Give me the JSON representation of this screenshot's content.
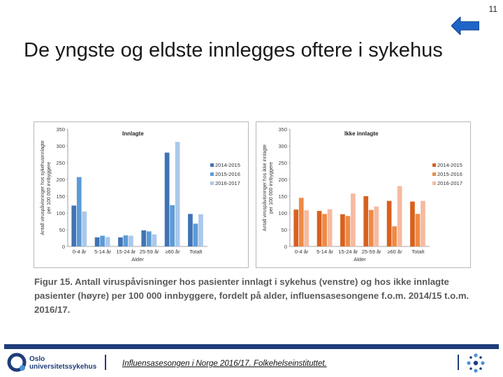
{
  "page_number": "11",
  "title": "De yngste og eldste innlegges oftere i sykehus",
  "caption": "Figur 15. Antall viruspåvisninger hos pasienter innlagt i sykehus (venstre) og hos ikke innlagte pasienter (høyre) per 100 000 innbyggere, fordelt på alder, influensasesongene f.o.m. 2014/15 t.o.m. 2016/17.",
  "footer": {
    "logo_line1": "Oslo",
    "logo_line2": "universitetssykehus",
    "link": "Influensasesongen i Norge 2016/17. Folkehelseinstituttet."
  },
  "colors": {
    "footer_bar": "#1f3d7a",
    "back_arrow": "#1f64c8"
  },
  "chart_data": [
    {
      "type": "bar",
      "title": "Innlagte",
      "xlabel": "Alder",
      "ylabel": "Antall viruspåvisninger hos sykehusinnlagte per 100 000 innbyggere",
      "categories": [
        "0-4 år",
        "5-14 år",
        "15-24 år",
        "25-59 år",
        "≥60 år",
        "Totalt"
      ],
      "ylim": [
        0,
        350
      ],
      "yticks": [
        0,
        50,
        100,
        150,
        200,
        250,
        300,
        350
      ],
      "legend_position": "right",
      "series": [
        {
          "name": "2014-2015",
          "color": "#3f73b5",
          "values": [
            122,
            27,
            27,
            48,
            280,
            97
          ]
        },
        {
          "name": "2015-2016",
          "color": "#5b9bd5",
          "values": [
            207,
            32,
            33,
            45,
            123,
            68
          ]
        },
        {
          "name": "2016-2017",
          "color": "#a9c8ec",
          "values": [
            104,
            28,
            32,
            36,
            312,
            96
          ]
        }
      ]
    },
    {
      "type": "bar",
      "title": "Ikke innlagte",
      "xlabel": "Alder",
      "ylabel": "Antall viruspåvisninger hos ikke innlagte per 100 000 innbyggere",
      "categories": [
        "0-4 år",
        "5-14 år",
        "15-24 år",
        "25-59 år",
        "≥60 år",
        "Totalt"
      ],
      "ylim": [
        0,
        350
      ],
      "yticks": [
        0,
        50,
        100,
        150,
        200,
        250,
        300,
        350
      ],
      "legend_position": "right",
      "series": [
        {
          "name": "2014-2015",
          "color": "#d9601f",
          "values": [
            110,
            106,
            96,
            150,
            136,
            134
          ]
        },
        {
          "name": "2015-2016",
          "color": "#ef8a45",
          "values": [
            145,
            97,
            91,
            109,
            60,
            97
          ]
        },
        {
          "name": "2016-2017",
          "color": "#f6baa0",
          "values": [
            108,
            111,
            158,
            119,
            180,
            136
          ]
        }
      ]
    }
  ]
}
